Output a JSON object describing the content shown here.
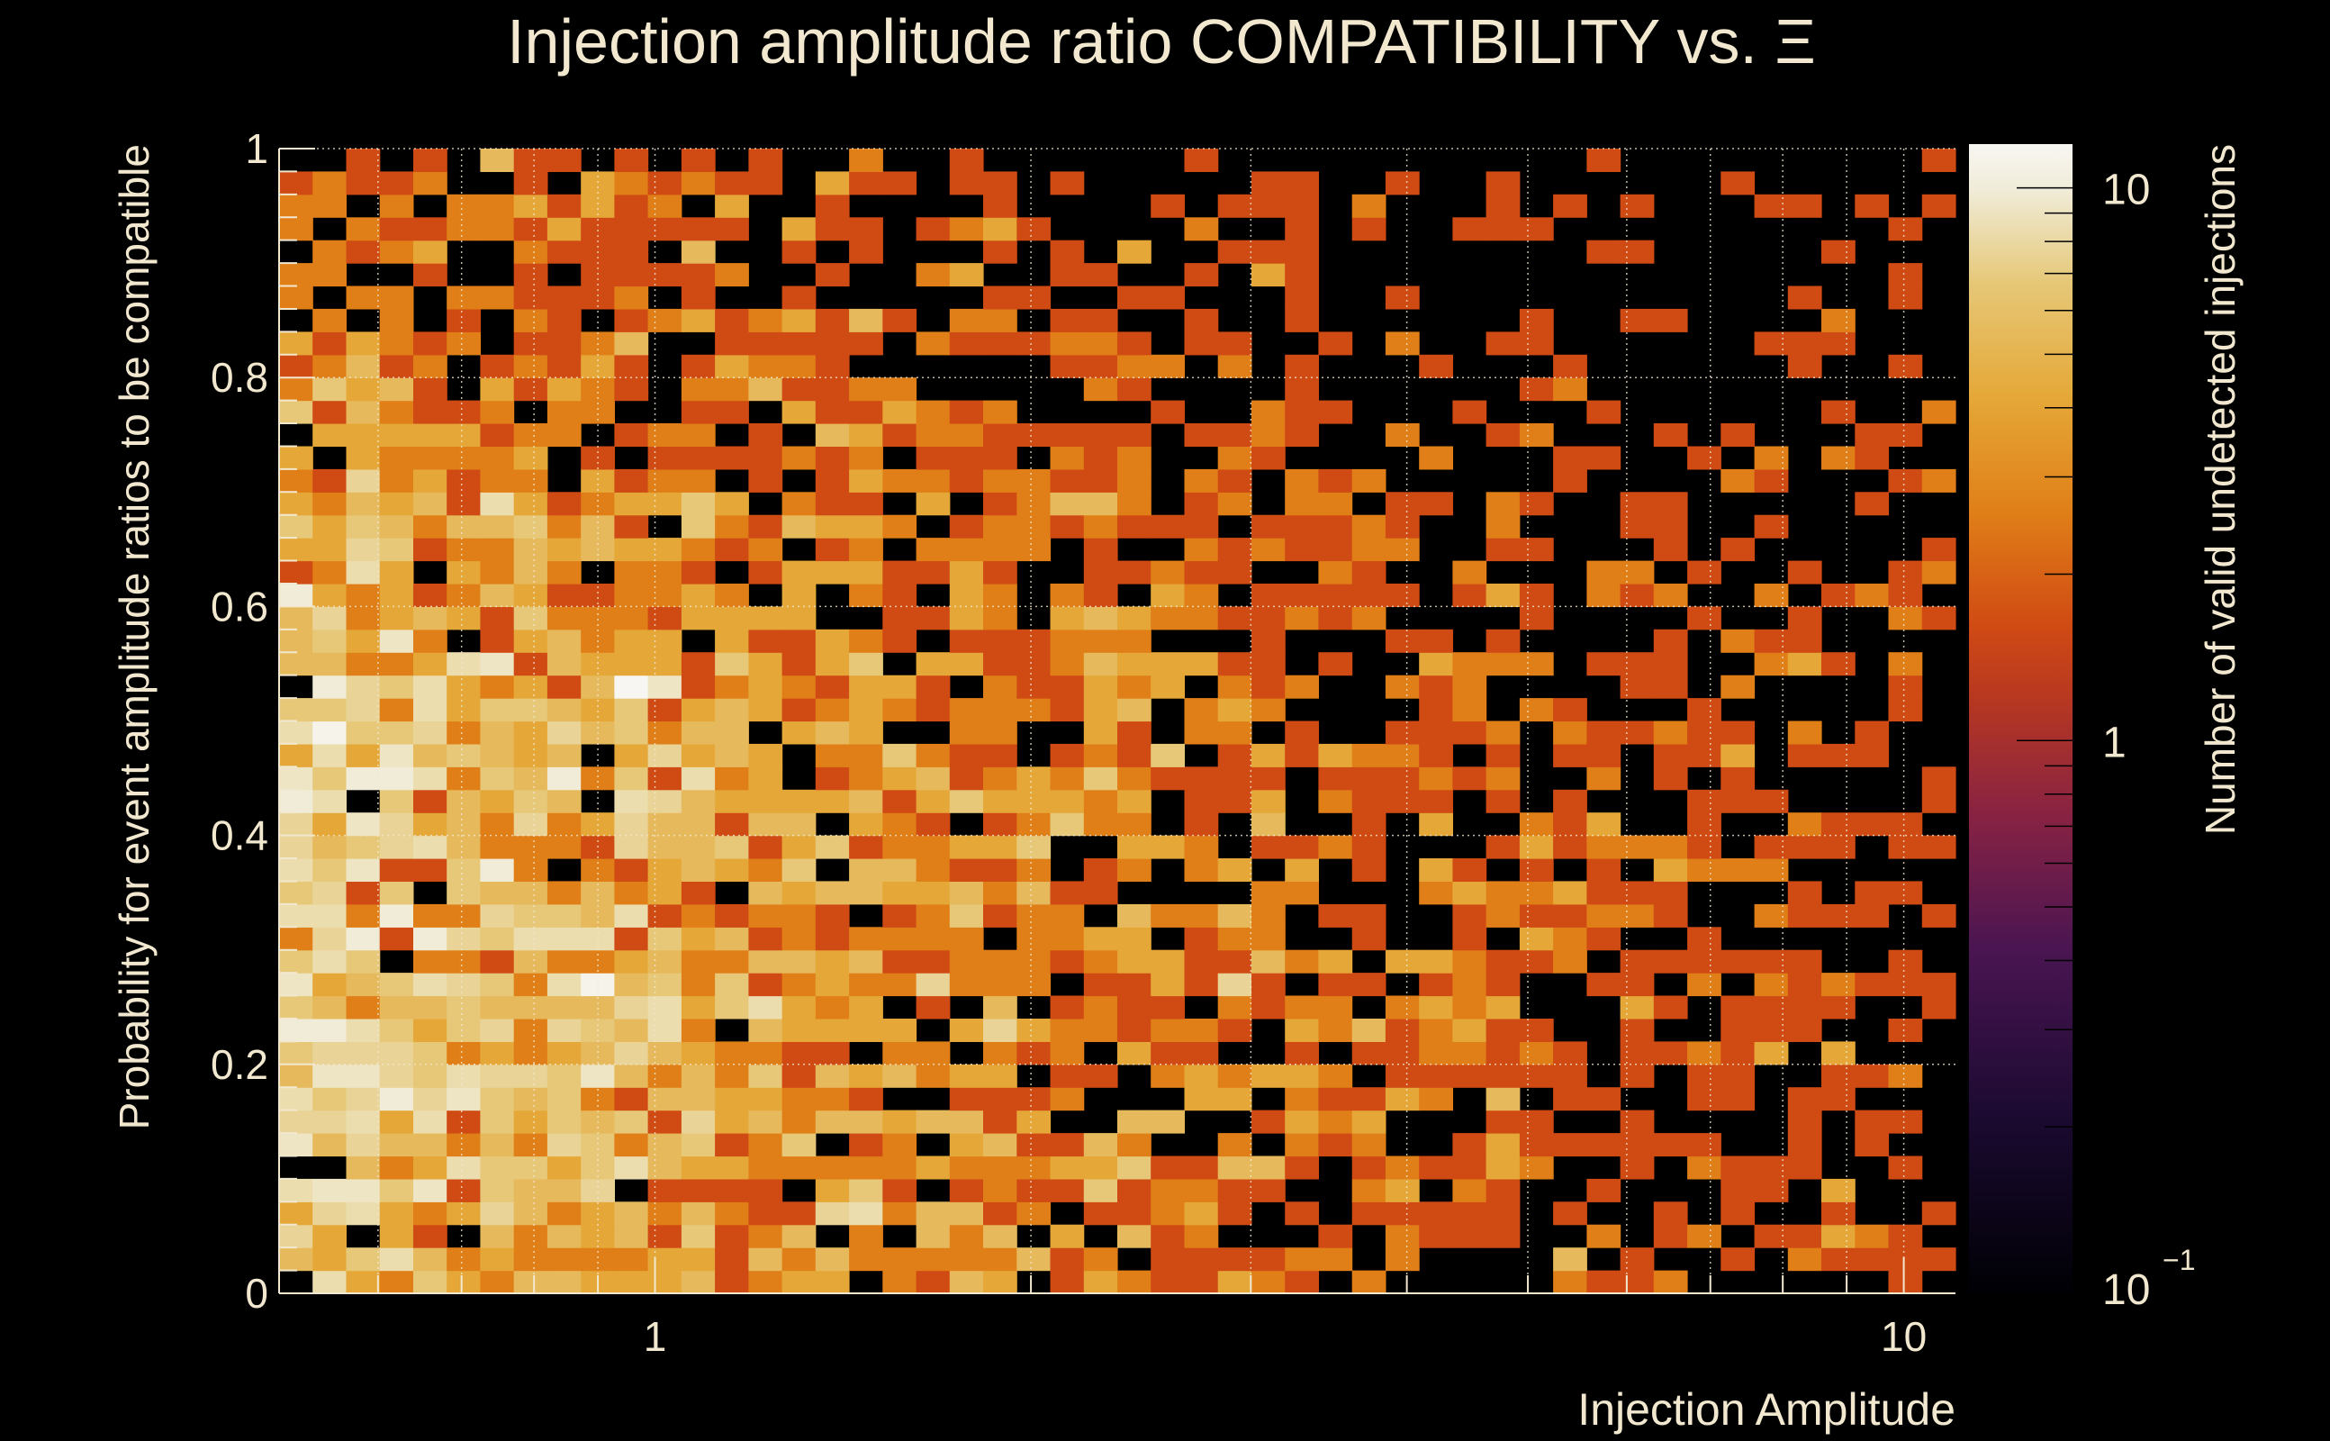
{
  "chart_data": {
    "type": "heatmap",
    "title": "Injection amplitude ratio COMPATIBILITY vs.  Ξ",
    "xlabel": "Injection Amplitude",
    "ylabel": "Probability for event amplitude ratios to be compatible",
    "colorbar_label": "Number of valid undetected injections",
    "x_scale": "log",
    "xlim": [
      0.5,
      11
    ],
    "ylim": [
      0,
      1
    ],
    "x_bins": 50,
    "y_bins": 50,
    "x_ticks": [
      {
        "value": 1,
        "label": "1"
      },
      {
        "value": 10,
        "label": "10"
      }
    ],
    "y_ticks": [
      {
        "value": 0,
        "label": "0"
      },
      {
        "value": 0.2,
        "label": "0.2"
      },
      {
        "value": 0.4,
        "label": "0.4"
      },
      {
        "value": 0.6,
        "label": "0.6"
      },
      {
        "value": 0.8,
        "label": "0.8"
      },
      {
        "value": 1,
        "label": "1"
      }
    ],
    "colorbar": {
      "scale": "log",
      "range": [
        0.1,
        12
      ],
      "ticks": [
        {
          "value": 0.1,
          "label": "10",
          "sup": "−1"
        },
        {
          "value": 1,
          "label": "1"
        },
        {
          "value": 10,
          "label": "10"
        }
      ]
    },
    "colormap": [
      "#000004",
      "#2a0b45",
      "#6e1d55",
      "#a3283a",
      "#d04a14",
      "#e07f18",
      "#e5a838",
      "#e6c878",
      "#f0ecd8",
      "#f8f6f2"
    ],
    "grid": true,
    "density_model": {
      "peak_x": 0.55,
      "peak_y": 0.3,
      "max_count": 11,
      "seed": 7
    }
  }
}
